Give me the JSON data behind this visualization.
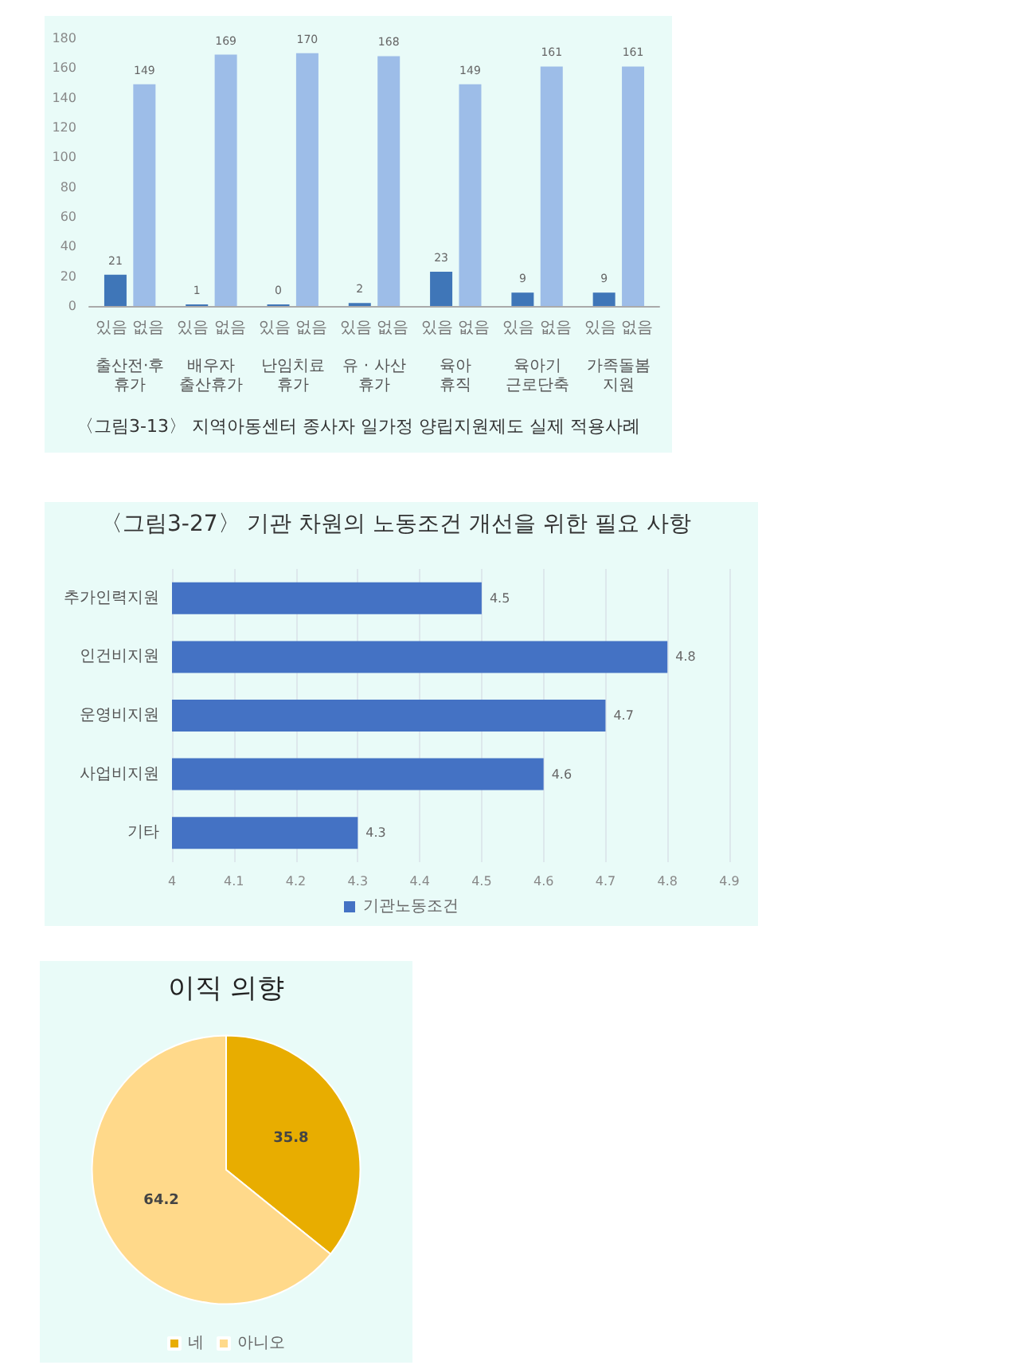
{
  "chart_data": [
    {
      "type": "bar",
      "title": "〈그림3-13〉 지역아동센터 종사자 일가정 양립지원제도 실제 적용사례",
      "categories": [
        "출산전·후 휴가",
        "배우자 출산휴가",
        "난임치료 휴가",
        "유 · 사산 휴가",
        "육아 휴직",
        "육아기 근로단축",
        "가족돌봄 지원"
      ],
      "series": [
        {
          "name": "있음",
          "color": "#3f76b8",
          "values": [
            21,
            1,
            0,
            2,
            23,
            9,
            9
          ]
        },
        {
          "name": "없음",
          "color": "#9dbde8",
          "values": [
            149,
            169,
            170,
            168,
            149,
            161,
            161
          ]
        }
      ],
      "ylim": [
        0,
        180
      ],
      "yticks": [
        0,
        20,
        40,
        60,
        80,
        100,
        120,
        140,
        160,
        180
      ],
      "data_labels": true,
      "grid": false,
      "legend": false
    },
    {
      "type": "bar",
      "orientation": "horizontal",
      "title": "〈그림3-27〉 기관 차원의 노동조건 개선을 위한 필요 사항",
      "categories": [
        "추가인력지원",
        "인건비지원",
        "운영비지원",
        "사업비지원",
        "기타"
      ],
      "series": [
        {
          "name": "기관노동조건",
          "color": "#4472c4",
          "values": [
            4.5,
            4.8,
            4.7,
            4.6,
            4.3
          ]
        }
      ],
      "xlim": [
        4,
        4.9
      ],
      "xticks": [
        4,
        4.1,
        4.2,
        4.3,
        4.4,
        4.5,
        4.6,
        4.7,
        4.8,
        4.9
      ],
      "data_labels": true,
      "grid": "x",
      "legend": "bottom"
    },
    {
      "type": "pie",
      "title": "이직 의향",
      "categories": [
        "네",
        "아니오"
      ],
      "values": [
        35.8,
        64.2
      ],
      "colors": [
        "#e8ad00",
        "#ffd98a"
      ],
      "data_labels": true,
      "legend": "bottom"
    }
  ]
}
